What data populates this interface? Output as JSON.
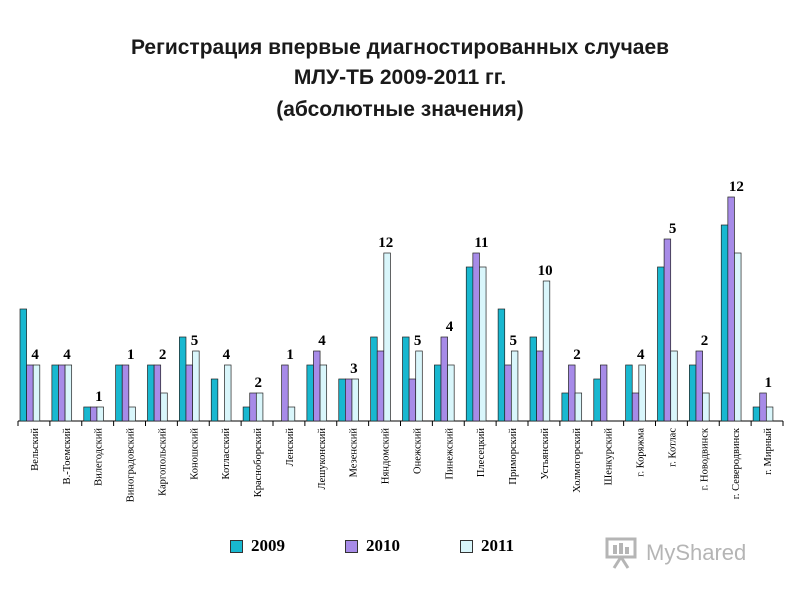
{
  "title": {
    "line1": "Регистрация впервые диагностированных случаев",
    "line2": "МЛУ-ТБ 2009-2011 гг.",
    "line3": "(абсолютные значения)"
  },
  "chart_data": {
    "type": "bar",
    "categories": [
      "Вельский",
      "В.-Тоемский",
      "Вилегодский",
      "Виноградовский",
      "Каргопольский",
      "Коношский",
      "Котласский",
      "Красноборский",
      "Ленский",
      "Лешуконский",
      "Мезенский",
      "Няндомский",
      "Онежский",
      "Пинежский",
      "Плесецкий",
      "Приморский",
      "Устьянский",
      "Холмогорский",
      "Шенкурский",
      "г. Коряжма",
      "г. Котлас",
      "г. Новодвинск",
      "г. Северодвинск",
      "г. Мирный"
    ],
    "series": [
      {
        "name": "2009",
        "color": "#18b8d0",
        "values": [
          8,
          4,
          1,
          4,
          4,
          6,
          3,
          1,
          0,
          4,
          3,
          6,
          6,
          4,
          11,
          8,
          6,
          2,
          3,
          4,
          11,
          4,
          14,
          1
        ]
      },
      {
        "name": "2010",
        "color": "#a78be8",
        "values": [
          4,
          4,
          1,
          4,
          4,
          4,
          0,
          2,
          4,
          5,
          3,
          5,
          3,
          6,
          12,
          4,
          5,
          4,
          4,
          2,
          13,
          5,
          16,
          2
        ]
      },
      {
        "name": "2011",
        "color": "#d9f6fb",
        "values": [
          4,
          4,
          1,
          1,
          2,
          5,
          4,
          2,
          1,
          4,
          3,
          12,
          5,
          4,
          11,
          5,
          10,
          2,
          0,
          4,
          5,
          2,
          12,
          1
        ]
      }
    ],
    "data_labels": [
      "4",
      "4",
      "1",
      "1",
      "2",
      "5",
      "4",
      "2",
      "1",
      "4",
      "3",
      "12",
      "5",
      "4",
      "11",
      "5",
      "10",
      "2",
      "",
      "4",
      "5",
      "2",
      "12",
      "1"
    ],
    "xlabel": "",
    "ylabel": "",
    "ylim": [
      0,
      18
    ],
    "grid": false,
    "legend": "bottom"
  },
  "watermark": {
    "text": "MyShared"
  }
}
